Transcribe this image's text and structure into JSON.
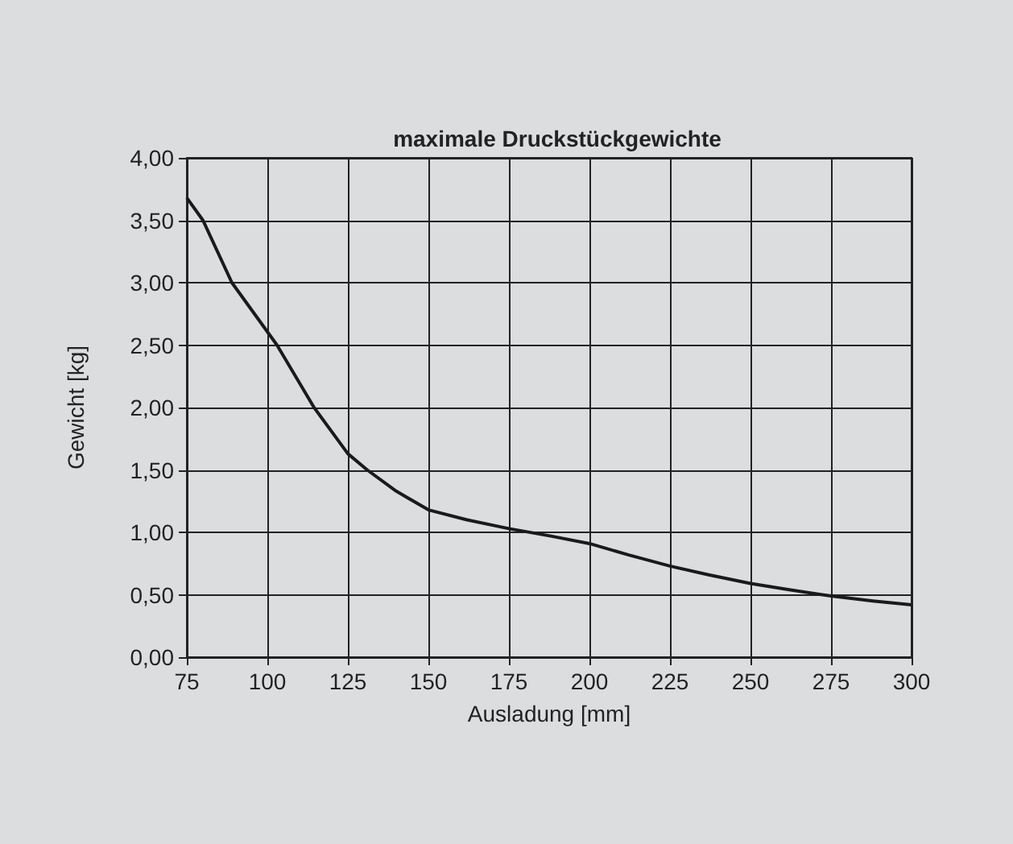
{
  "chart_data": {
    "type": "line",
    "title": "maximale Druckstückgewichte",
    "xlabel": "Ausladung [mm]",
    "ylabel": "Gewicht [kg]",
    "x": [
      75,
      80,
      89,
      103,
      114.5,
      125,
      131,
      140,
      150,
      162,
      175,
      188,
      200,
      212,
      225,
      237,
      250,
      262,
      275,
      288,
      300
    ],
    "series": [
      {
        "color": "#1a1a1a",
        "values": [
          3.68,
          3.5,
          3.0,
          2.5,
          2.0,
          1.63,
          1.5,
          1.33,
          1.18,
          1.1,
          1.03,
          0.97,
          0.91,
          0.82,
          0.73,
          0.66,
          0.59,
          0.54,
          0.49,
          0.45,
          0.42
        ]
      }
    ],
    "xlim": [
      75,
      300
    ],
    "xticks": [
      75,
      100,
      125,
      150,
      175,
      200,
      225,
      250,
      275,
      300
    ],
    "ylim": [
      0,
      4
    ],
    "yticks": [
      {
        "value": 0,
        "label": "0,00"
      },
      {
        "value": 0.5,
        "label": "0,50"
      },
      {
        "value": 1,
        "label": "1,00"
      },
      {
        "value": 1.5,
        "label": "1,50"
      },
      {
        "value": 2,
        "label": "2,00"
      },
      {
        "value": 2.5,
        "label": "2,50"
      },
      {
        "value": 3,
        "label": "3,00"
      },
      {
        "value": 3.5,
        "label": "3,50"
      },
      {
        "value": 4,
        "label": "4,00"
      }
    ],
    "grid": true,
    "marker": "none",
    "line_style": "solid"
  }
}
